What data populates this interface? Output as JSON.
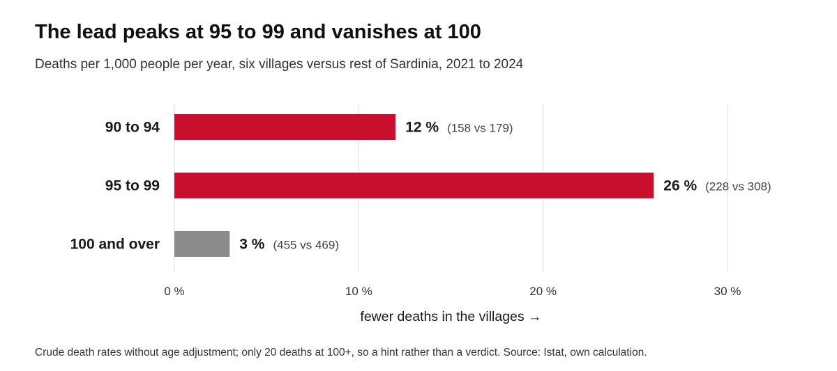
{
  "title": "The lead peaks at 95 to 99 and vanishes at 100",
  "subtitle": "Deaths per 1,000 people per year, six villages versus rest of Sardinia, 2021 to 2024",
  "footnote": "Crude death rates without age adjustment; only 20 deaths at 100+, so a hint rather than a verdict. Source: Istat, own calculation.",
  "chart_data": {
    "type": "bar",
    "orientation": "horizontal",
    "categories": [
      "90 to 94",
      "95 to 99",
      "100 and over"
    ],
    "values": [
      12,
      26,
      3
    ],
    "value_labels": [
      "12 %",
      "26 %",
      "3 %"
    ],
    "detail_labels": [
      "(158 vs 179)",
      "(228 vs 308)",
      "(455 vs 469)"
    ],
    "bar_colors": [
      "#c8102e",
      "#c8102e",
      "#8c8c8c"
    ],
    "xlim": [
      0,
      30
    ],
    "xticks": [
      0,
      10,
      20,
      30
    ],
    "xtick_labels": [
      "0 %",
      "10 %",
      "20 %",
      "30 %"
    ],
    "xlabel": "fewer deaths in the villages →",
    "grid": true
  }
}
